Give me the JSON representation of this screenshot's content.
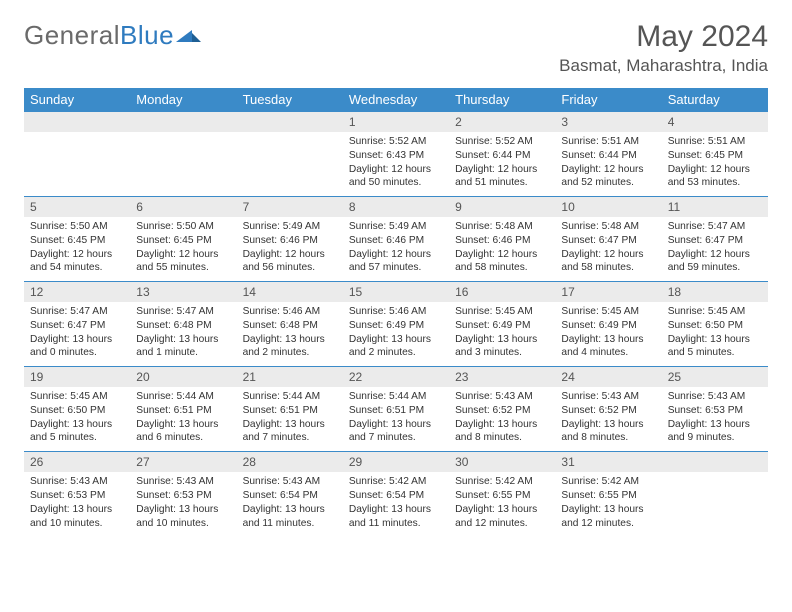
{
  "logo": {
    "part1": "General",
    "part2": "Blue"
  },
  "title": {
    "month": "May 2024",
    "location": "Basmat, Maharashtra, India"
  },
  "colors": {
    "header_bg": "#3b8bc9",
    "header_text": "#ffffff",
    "daynum_bg": "#ebebeb",
    "text": "#333333",
    "border": "#3b8bc9"
  },
  "weekdays": [
    "Sunday",
    "Monday",
    "Tuesday",
    "Wednesday",
    "Thursday",
    "Friday",
    "Saturday"
  ],
  "weeks": [
    {
      "nums": [
        "",
        "",
        "",
        "1",
        "2",
        "3",
        "4"
      ],
      "details": [
        "",
        "",
        "",
        "Sunrise: 5:52 AM\nSunset: 6:43 PM\nDaylight: 12 hours and 50 minutes.",
        "Sunrise: 5:52 AM\nSunset: 6:44 PM\nDaylight: 12 hours and 51 minutes.",
        "Sunrise: 5:51 AM\nSunset: 6:44 PM\nDaylight: 12 hours and 52 minutes.",
        "Sunrise: 5:51 AM\nSunset: 6:45 PM\nDaylight: 12 hours and 53 minutes."
      ]
    },
    {
      "nums": [
        "5",
        "6",
        "7",
        "8",
        "9",
        "10",
        "11"
      ],
      "details": [
        "Sunrise: 5:50 AM\nSunset: 6:45 PM\nDaylight: 12 hours and 54 minutes.",
        "Sunrise: 5:50 AM\nSunset: 6:45 PM\nDaylight: 12 hours and 55 minutes.",
        "Sunrise: 5:49 AM\nSunset: 6:46 PM\nDaylight: 12 hours and 56 minutes.",
        "Sunrise: 5:49 AM\nSunset: 6:46 PM\nDaylight: 12 hours and 57 minutes.",
        "Sunrise: 5:48 AM\nSunset: 6:46 PM\nDaylight: 12 hours and 58 minutes.",
        "Sunrise: 5:48 AM\nSunset: 6:47 PM\nDaylight: 12 hours and 58 minutes.",
        "Sunrise: 5:47 AM\nSunset: 6:47 PM\nDaylight: 12 hours and 59 minutes."
      ]
    },
    {
      "nums": [
        "12",
        "13",
        "14",
        "15",
        "16",
        "17",
        "18"
      ],
      "details": [
        "Sunrise: 5:47 AM\nSunset: 6:47 PM\nDaylight: 13 hours and 0 minutes.",
        "Sunrise: 5:47 AM\nSunset: 6:48 PM\nDaylight: 13 hours and 1 minute.",
        "Sunrise: 5:46 AM\nSunset: 6:48 PM\nDaylight: 13 hours and 2 minutes.",
        "Sunrise: 5:46 AM\nSunset: 6:49 PM\nDaylight: 13 hours and 2 minutes.",
        "Sunrise: 5:45 AM\nSunset: 6:49 PM\nDaylight: 13 hours and 3 minutes.",
        "Sunrise: 5:45 AM\nSunset: 6:49 PM\nDaylight: 13 hours and 4 minutes.",
        "Sunrise: 5:45 AM\nSunset: 6:50 PM\nDaylight: 13 hours and 5 minutes."
      ]
    },
    {
      "nums": [
        "19",
        "20",
        "21",
        "22",
        "23",
        "24",
        "25"
      ],
      "details": [
        "Sunrise: 5:45 AM\nSunset: 6:50 PM\nDaylight: 13 hours and 5 minutes.",
        "Sunrise: 5:44 AM\nSunset: 6:51 PM\nDaylight: 13 hours and 6 minutes.",
        "Sunrise: 5:44 AM\nSunset: 6:51 PM\nDaylight: 13 hours and 7 minutes.",
        "Sunrise: 5:44 AM\nSunset: 6:51 PM\nDaylight: 13 hours and 7 minutes.",
        "Sunrise: 5:43 AM\nSunset: 6:52 PM\nDaylight: 13 hours and 8 minutes.",
        "Sunrise: 5:43 AM\nSunset: 6:52 PM\nDaylight: 13 hours and 8 minutes.",
        "Sunrise: 5:43 AM\nSunset: 6:53 PM\nDaylight: 13 hours and 9 minutes."
      ]
    },
    {
      "nums": [
        "26",
        "27",
        "28",
        "29",
        "30",
        "31",
        ""
      ],
      "details": [
        "Sunrise: 5:43 AM\nSunset: 6:53 PM\nDaylight: 13 hours and 10 minutes.",
        "Sunrise: 5:43 AM\nSunset: 6:53 PM\nDaylight: 13 hours and 10 minutes.",
        "Sunrise: 5:43 AM\nSunset: 6:54 PM\nDaylight: 13 hours and 11 minutes.",
        "Sunrise: 5:42 AM\nSunset: 6:54 PM\nDaylight: 13 hours and 11 minutes.",
        "Sunrise: 5:42 AM\nSunset: 6:55 PM\nDaylight: 13 hours and 12 minutes.",
        "Sunrise: 5:42 AM\nSunset: 6:55 PM\nDaylight: 13 hours and 12 minutes.",
        ""
      ]
    }
  ]
}
